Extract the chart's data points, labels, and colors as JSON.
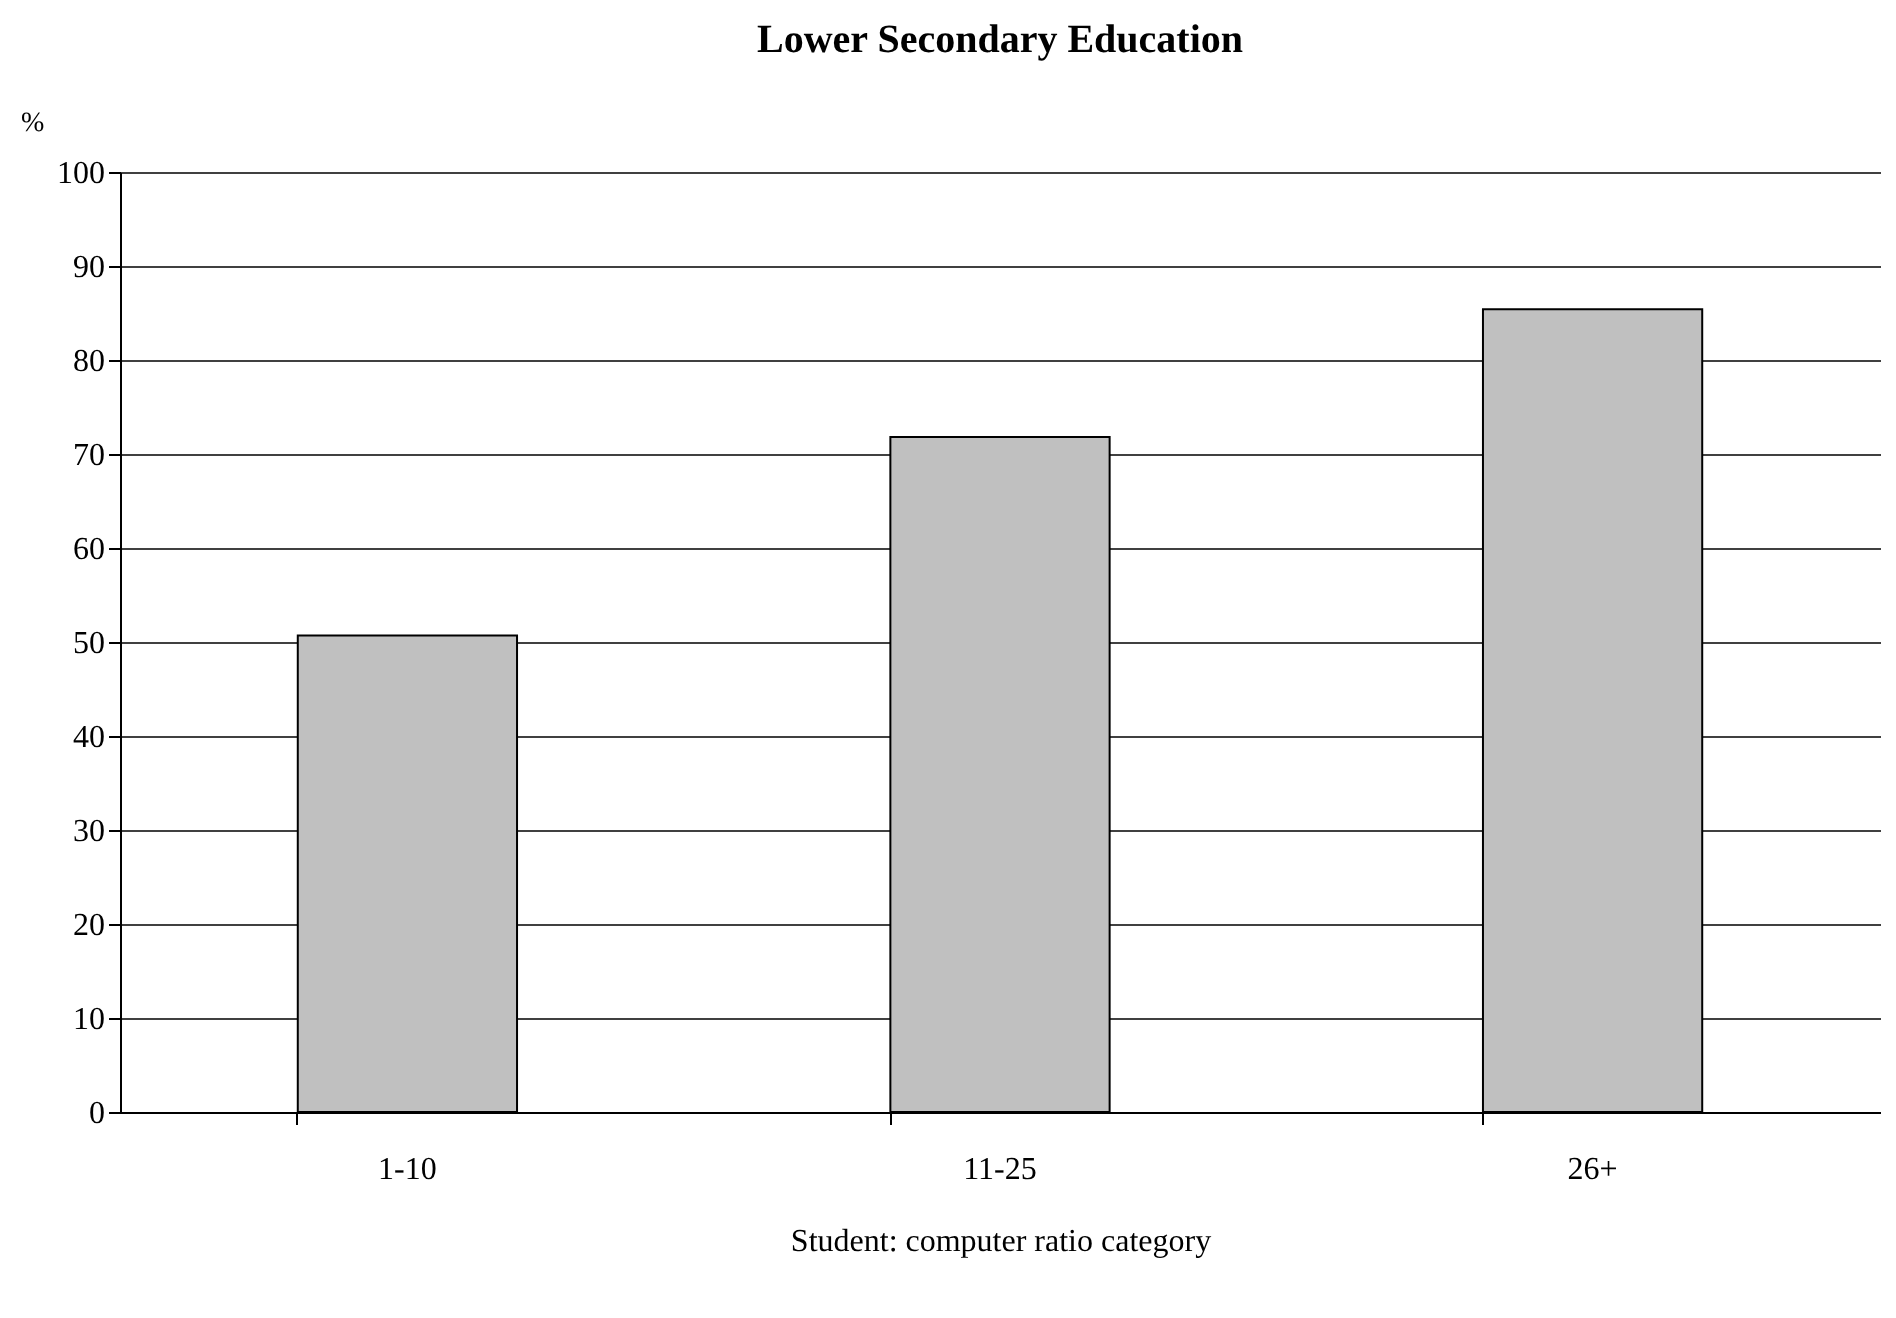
{
  "chart_data": {
    "type": "bar",
    "title": "Lower Secondary Education",
    "xlabel": "Student: computer ratio category",
    "ylabel": "%",
    "categories": [
      "1-10",
      "11-25",
      "26+"
    ],
    "values": [
      50.7,
      71.8,
      85.4
    ],
    "color": "#c0c0c0",
    "ylim": [
      0,
      100
    ],
    "yticks": [
      0,
      10,
      20,
      30,
      40,
      50,
      60,
      70,
      80,
      90,
      100
    ],
    "grid": "y"
  }
}
